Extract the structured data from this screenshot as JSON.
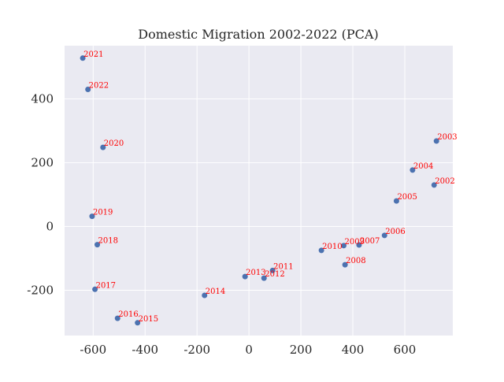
{
  "chart_data": {
    "type": "scatter",
    "title": "Domestic Migration 2002-2022 (PCA)",
    "xlabel": "",
    "ylabel": "",
    "xlim": [
      -710,
      785
    ],
    "ylim": [
      -342,
      567
    ],
    "x_ticks": [
      -600,
      -400,
      -200,
      0,
      200,
      400,
      600
    ],
    "x_tick_labels": [
      "-600",
      "-400",
      "-200",
      "0",
      "200",
      "400",
      "600"
    ],
    "y_ticks": [
      -200,
      0,
      200,
      400
    ],
    "y_tick_labels": [
      "-200",
      "0",
      "200",
      "400"
    ],
    "grid": true,
    "legend": "none",
    "colors": {
      "background": "#eaeaf2",
      "grid": "#ffffff",
      "marker": "#4c72b0",
      "label": "#ff0000"
    },
    "points": [
      {
        "label": "2002",
        "x": 713,
        "y": 130
      },
      {
        "label": "2003",
        "x": 722,
        "y": 268
      },
      {
        "label": "2004",
        "x": 630,
        "y": 177
      },
      {
        "label": "2005",
        "x": 568,
        "y": 80
      },
      {
        "label": "2006",
        "x": 522,
        "y": -28
      },
      {
        "label": "2007",
        "x": 424,
        "y": -58
      },
      {
        "label": "2008",
        "x": 370,
        "y": -120
      },
      {
        "label": "2009",
        "x": 365,
        "y": -60
      },
      {
        "label": "2010",
        "x": 279,
        "y": -75
      },
      {
        "label": "2011",
        "x": 91,
        "y": -138
      },
      {
        "label": "2012",
        "x": 58,
        "y": -162
      },
      {
        "label": "2013",
        "x": -15,
        "y": -157
      },
      {
        "label": "2014",
        "x": -171,
        "y": -216
      },
      {
        "label": "2015",
        "x": -429,
        "y": -302
      },
      {
        "label": "2016",
        "x": -506,
        "y": -288
      },
      {
        "label": "2017",
        "x": -593,
        "y": -197
      },
      {
        "label": "2018",
        "x": -584,
        "y": -57
      },
      {
        "label": "2019",
        "x": -604,
        "y": 32
      },
      {
        "label": "2020",
        "x": -562,
        "y": 248
      },
      {
        "label": "2021",
        "x": -640,
        "y": 528
      },
      {
        "label": "2022",
        "x": -620,
        "y": 430
      }
    ]
  }
}
